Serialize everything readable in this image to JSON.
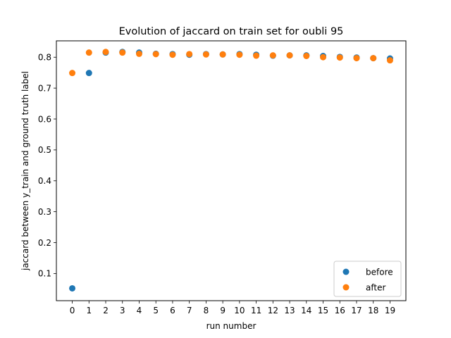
{
  "chart_data": {
    "type": "scatter",
    "title": "Evolution of jaccard on train set for oubli 95",
    "xlabel": "run number",
    "ylabel": "jaccard between y_train and ground truth label",
    "x": [
      0,
      1,
      2,
      3,
      4,
      5,
      6,
      7,
      8,
      9,
      10,
      11,
      12,
      13,
      14,
      15,
      16,
      17,
      18,
      19
    ],
    "xlim": [
      -0.95,
      19.95
    ],
    "ylim": [
      0.012,
      0.853
    ],
    "yticks": [
      0.1,
      0.2,
      0.3,
      0.4,
      0.5,
      0.6,
      0.7,
      0.8
    ],
    "grid": false,
    "legend_position": "lower right",
    "series": [
      {
        "name": "before",
        "color": "#1f77b4",
        "values": [
          0.052,
          0.749,
          0.815,
          0.817,
          0.815,
          0.811,
          0.81,
          0.808,
          0.81,
          0.809,
          0.81,
          0.808,
          0.805,
          0.806,
          0.806,
          0.804,
          0.801,
          0.799,
          0.797,
          0.796
        ]
      },
      {
        "name": "after",
        "color": "#ff7f0e",
        "values": [
          0.749,
          0.815,
          0.817,
          0.815,
          0.811,
          0.81,
          0.808,
          0.81,
          0.809,
          0.809,
          0.808,
          0.805,
          0.806,
          0.806,
          0.804,
          0.8,
          0.799,
          0.797,
          0.797,
          0.79
        ]
      }
    ]
  }
}
